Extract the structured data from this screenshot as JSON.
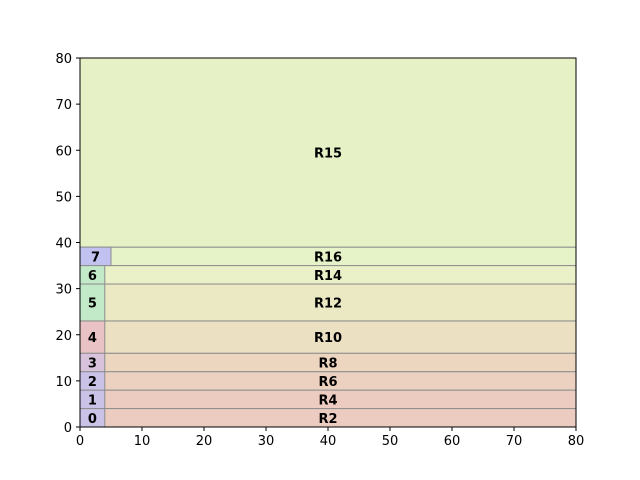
{
  "chart_data": {
    "type": "rectangle-packing",
    "title": "",
    "xlabel": "",
    "ylabel": "",
    "xlim": [
      0,
      80
    ],
    "ylim": [
      0,
      80
    ],
    "x_ticks": [
      0,
      10,
      20,
      30,
      40,
      50,
      60,
      70,
      80
    ],
    "y_ticks": [
      0,
      10,
      20,
      30,
      40,
      50,
      60,
      70,
      80
    ],
    "grid": false,
    "rectangles": [
      {
        "label": "R2",
        "x0": 0,
        "x1": 80,
        "y0": 0,
        "y1": 4,
        "color": "#eccbc0"
      },
      {
        "label": "R4",
        "x0": 0,
        "x1": 80,
        "y0": 4,
        "y1": 8,
        "color": "#eccbc0"
      },
      {
        "label": "R6",
        "x0": 0,
        "x1": 80,
        "y0": 8,
        "y1": 12,
        "color": "#ecd0c0"
      },
      {
        "label": "R8",
        "x0": 0,
        "x1": 80,
        "y0": 12,
        "y1": 16,
        "color": "#ecd6c0"
      },
      {
        "label": "R10",
        "x0": 0,
        "x1": 80,
        "y0": 16,
        "y1": 23,
        "color": "#ece0c2"
      },
      {
        "label": "R12",
        "x0": 0,
        "x1": 80,
        "y0": 23,
        "y1": 31,
        "color": "#ebe8c4"
      },
      {
        "label": "R14",
        "x0": 0,
        "x1": 80,
        "y0": 31,
        "y1": 35,
        "color": "#eaf0c8"
      },
      {
        "label": "R16",
        "x0": 0,
        "x1": 80,
        "y0": 35,
        "y1": 39,
        "color": "#e6f2c8"
      },
      {
        "label": "R15",
        "x0": 0,
        "x1": 80,
        "y0": 39,
        "y1": 80,
        "color": "#e6f2c6"
      },
      {
        "label": "0",
        "x0": 0,
        "x1": 4,
        "y0": 0,
        "y1": 4,
        "color": "#cbc2e8"
      },
      {
        "label": "1",
        "x0": 0,
        "x1": 4,
        "y0": 4,
        "y1": 8,
        "color": "#cbc2e8"
      },
      {
        "label": "2",
        "x0": 0,
        "x1": 4,
        "y0": 8,
        "y1": 12,
        "color": "#cbc2e8"
      },
      {
        "label": "3",
        "x0": 0,
        "x1": 4,
        "y0": 12,
        "y1": 16,
        "color": "#d8c2dc"
      },
      {
        "label": "4",
        "x0": 0,
        "x1": 4,
        "y0": 16,
        "y1": 23,
        "color": "#e8c2c4"
      },
      {
        "label": "5",
        "x0": 0,
        "x1": 4,
        "y0": 23,
        "y1": 31,
        "color": "#c2eac8"
      },
      {
        "label": "6",
        "x0": 0,
        "x1": 4,
        "y0": 31,
        "y1": 35,
        "color": "#c2eac8"
      },
      {
        "label": "7",
        "x0": 0,
        "x1": 5,
        "y0": 35,
        "y1": 39,
        "color": "#c2c2f0"
      }
    ],
    "edge_color": "#8c8c8c",
    "axis_color": "#000000"
  }
}
